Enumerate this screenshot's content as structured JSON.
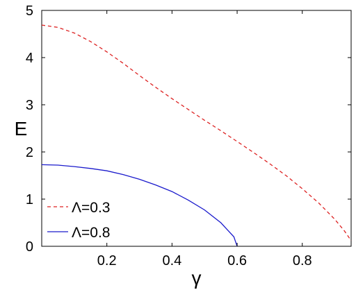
{
  "chart_data": {
    "type": "line",
    "title": "",
    "xlabel": "γ",
    "ylabel": "E",
    "xlim": [
      0,
      0.95
    ],
    "ylim": [
      0,
      5
    ],
    "xticks": [
      0.2,
      0.4,
      0.6,
      0.8
    ],
    "xtick_labels": [
      "0.2",
      "0.4",
      "0.6",
      "0.8"
    ],
    "yticks": [
      0,
      1,
      2,
      3,
      4,
      5
    ],
    "ytick_labels": [
      "0",
      "1",
      "2",
      "3",
      "4",
      "5"
    ],
    "grid": false,
    "legend_position": "bottom-left",
    "series": [
      {
        "name": "Λ=0.3",
        "color": "#dd2222",
        "style": "dashed",
        "x": [
          0.0,
          0.05,
          0.1,
          0.15,
          0.2,
          0.25,
          0.3,
          0.35,
          0.4,
          0.45,
          0.5,
          0.55,
          0.6,
          0.65,
          0.7,
          0.75,
          0.8,
          0.85,
          0.9,
          0.93,
          0.95
        ],
        "y": [
          4.69,
          4.64,
          4.52,
          4.34,
          4.12,
          3.88,
          3.62,
          3.37,
          3.13,
          2.9,
          2.67,
          2.45,
          2.22,
          1.99,
          1.75,
          1.5,
          1.22,
          0.92,
          0.57,
          0.32,
          0.12
        ]
      },
      {
        "name": "Λ=0.8",
        "color": "#1a1acc",
        "style": "solid",
        "x": [
          0.0,
          0.05,
          0.1,
          0.15,
          0.2,
          0.25,
          0.3,
          0.35,
          0.4,
          0.45,
          0.5,
          0.55,
          0.57,
          0.59,
          0.595,
          0.6
        ],
        "y": [
          1.73,
          1.72,
          1.69,
          1.65,
          1.6,
          1.52,
          1.42,
          1.3,
          1.16,
          0.98,
          0.77,
          0.5,
          0.35,
          0.2,
          0.1,
          0.0
        ]
      }
    ]
  }
}
